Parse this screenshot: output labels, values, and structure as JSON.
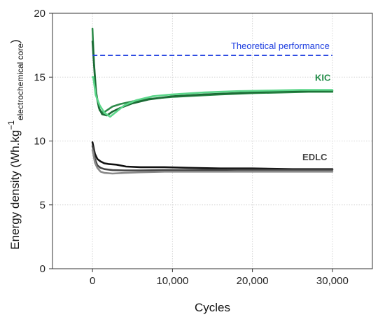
{
  "chart_data": {
    "type": "line",
    "xlabel": "Cycles",
    "ylabel_main": "Energy density (Wh.kg",
    "ylabel_sup": "−1",
    "ylabel_sub": "electrochemical core",
    "ylabel_close": ")",
    "xlim": [
      -5000,
      35000
    ],
    "ylim": [
      0,
      20
    ],
    "x_ticks": [
      0,
      10000,
      20000,
      30000
    ],
    "x_tick_labels": [
      "0",
      "10,000",
      "20,000",
      "30,000"
    ],
    "y_ticks": [
      0,
      5,
      10,
      15,
      20
    ],
    "y_tick_labels": [
      "0",
      "5",
      "10",
      "15",
      "20"
    ],
    "grid": true,
    "reference_line": {
      "label": "Theoretical performance",
      "y": 16.7,
      "x_range": [
        0,
        30000
      ],
      "color": "#1f3fe0",
      "style": "dashed"
    },
    "series": [
      {
        "group": "KIC",
        "color": "#2e8b4a",
        "x": [
          0,
          50,
          200,
          500,
          900,
          1300,
          1800,
          2500,
          3500,
          5000,
          7000,
          10000,
          13000,
          16000,
          20000,
          24000,
          27000,
          30000
        ],
        "y": [
          18.8,
          18.0,
          16.0,
          13.5,
          12.4,
          12.2,
          12.4,
          12.7,
          12.9,
          13.1,
          13.3,
          13.45,
          13.55,
          13.65,
          13.75,
          13.8,
          13.85,
          13.85
        ]
      },
      {
        "group": "KIC",
        "color": "#1b6b35",
        "x": [
          0,
          100,
          400,
          800,
          1200,
          1800,
          2500,
          3500,
          5000,
          7000,
          10000,
          14000,
          18000,
          22000,
          26000,
          30000
        ],
        "y": [
          17.8,
          16.8,
          14.0,
          12.6,
          12.1,
          12.0,
          12.3,
          12.6,
          12.95,
          13.25,
          13.5,
          13.65,
          13.75,
          13.85,
          13.9,
          13.95
        ]
      },
      {
        "group": "KIC",
        "color": "#5cd68a",
        "x": [
          0,
          100,
          400,
          900,
          1500,
          2200,
          3000,
          4000,
          5500,
          7500,
          10000,
          14000,
          18000,
          22000,
          26000,
          30000
        ],
        "y": [
          15.0,
          15.0,
          13.6,
          12.8,
          12.2,
          11.9,
          12.3,
          12.8,
          13.2,
          13.5,
          13.65,
          13.8,
          13.9,
          13.95,
          14.0,
          14.0
        ]
      },
      {
        "group": "EDLC",
        "color": "#111111",
        "x": [
          0,
          100,
          300,
          600,
          1000,
          1500,
          2000,
          3000,
          4200,
          6000,
          9000,
          12000,
          16000,
          20000,
          25000,
          30000
        ],
        "y": [
          9.9,
          9.6,
          9.0,
          8.6,
          8.4,
          8.25,
          8.2,
          8.15,
          8.0,
          7.95,
          7.95,
          7.9,
          7.85,
          7.85,
          7.8,
          7.8
        ]
      },
      {
        "group": "EDLC",
        "color": "#444444",
        "x": [
          0,
          100,
          300,
          600,
          1000,
          1500,
          2500,
          4000,
          6000,
          9000,
          13000,
          18000,
          24000,
          30000
        ],
        "y": [
          9.6,
          9.4,
          8.6,
          8.1,
          7.9,
          7.8,
          7.72,
          7.7,
          7.7,
          7.72,
          7.72,
          7.75,
          7.75,
          7.75
        ]
      },
      {
        "group": "EDLC",
        "color": "#8a8a8a",
        "x": [
          0,
          100,
          300,
          600,
          1000,
          1500,
          2500,
          4000,
          6000,
          9000,
          13000,
          18000,
          24000,
          30000
        ],
        "y": [
          9.3,
          9.0,
          8.3,
          7.9,
          7.6,
          7.5,
          7.45,
          7.5,
          7.55,
          7.6,
          7.6,
          7.6,
          7.6,
          7.6
        ]
      }
    ],
    "annotations": [
      {
        "text": "KIC",
        "x": 28800,
        "y": 14.7,
        "color": "#1f8a45"
      },
      {
        "text": "EDLC",
        "x": 27800,
        "y": 8.5,
        "color": "#444444"
      }
    ]
  }
}
